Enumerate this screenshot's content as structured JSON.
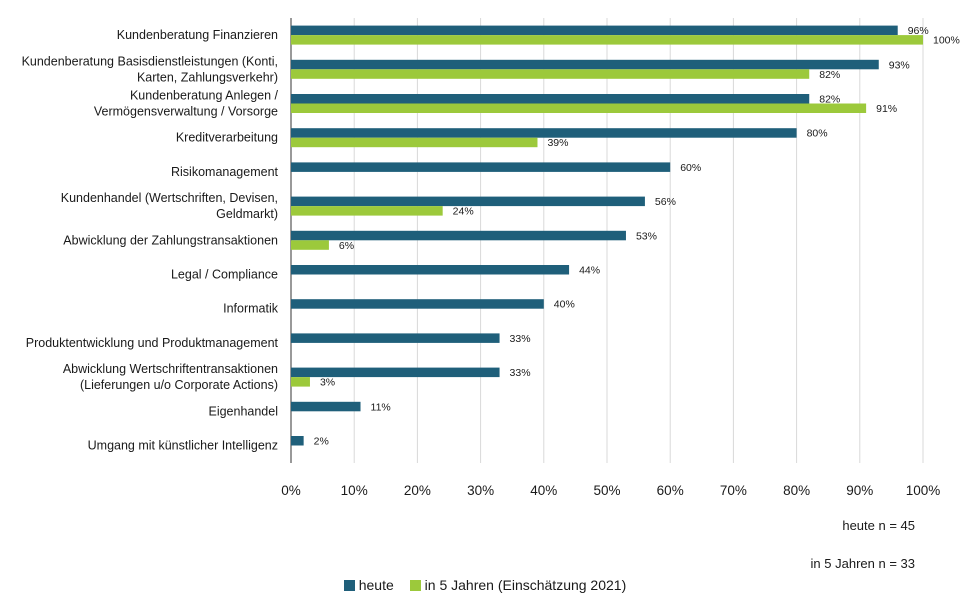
{
  "chart_data": {
    "type": "bar",
    "orientation": "horizontal",
    "categories": [
      [
        "Kundenberatung Finanzieren"
      ],
      [
        "Kundenberatung Basisdienstleistungen (Konti,",
        "Karten, Zahlungsverkehr)"
      ],
      [
        "Kundenberatung Anlegen /",
        "Vermögensverwaltung / Vorsorge"
      ],
      [
        "Kreditverarbeitung"
      ],
      [
        "Risikomanagement"
      ],
      [
        "Kundenhandel (Wertschriften, Devisen,",
        "Geldmarkt)"
      ],
      [
        "Abwicklung der Zahlungstransaktionen"
      ],
      [
        "Legal / Compliance"
      ],
      [
        "Informatik"
      ],
      [
        "Produktentwicklung und Produktmanagement"
      ],
      [
        "Abwicklung Wertschriftentransaktionen",
        "(Lieferungen u/o Corporate Actions)"
      ],
      [
        "Eigenhandel"
      ],
      [
        "Umgang mit künstlicher Intelligenz"
      ]
    ],
    "series": [
      {
        "name": "heute",
        "color": "#1f5f7a",
        "values": [
          96,
          93,
          82,
          80,
          60,
          56,
          53,
          44,
          40,
          33,
          33,
          11,
          2
        ]
      },
      {
        "name": "in 5 Jahren (Einschätzung 2021)",
        "color": "#9cc93b",
        "values": [
          100,
          82,
          91,
          39,
          null,
          24,
          6,
          null,
          null,
          null,
          3,
          null,
          null
        ]
      }
    ],
    "xlim": [
      0,
      100
    ],
    "xticks": [
      "0%",
      "10%",
      "20%",
      "30%",
      "40%",
      "50%",
      "60%",
      "70%",
      "80%",
      "90%",
      "100%"
    ],
    "value_suffix": "%",
    "grid": "vertical",
    "legend_position": "bottom"
  },
  "notes": {
    "heute_n": "heute n = 45",
    "in5_n": "in 5 Jahren n = 33"
  }
}
